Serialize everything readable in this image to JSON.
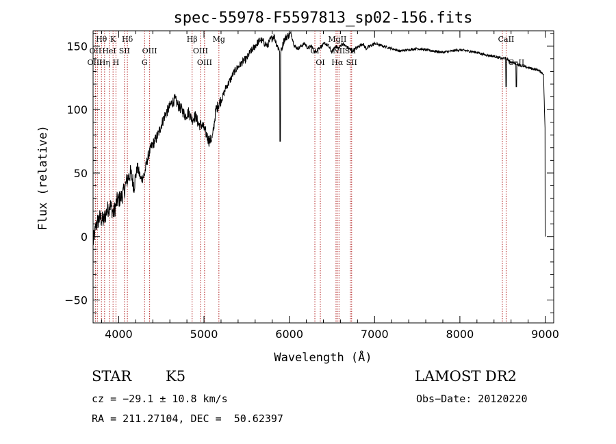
{
  "chart_data": {
    "type": "line",
    "title": "spec-55978-F5597813_sp02-156.fits",
    "xlabel": "Wavelength (Å)",
    "ylabel": "Flux (relative)",
    "xlim": [
      3700,
      9100
    ],
    "ylim": [
      -68,
      162
    ],
    "x_ticks": [
      4000,
      5000,
      6000,
      7000,
      8000,
      9000
    ],
    "y_ticks": [
      -50,
      0,
      50,
      100,
      150
    ],
    "grid": false,
    "series": [
      {
        "color": "#000000",
        "x": [
          3700,
          3740,
          3780,
          3820,
          3860,
          3900,
          3940,
          3980,
          4020,
          4060,
          4100,
          4140,
          4180,
          4220,
          4260,
          4300,
          4340,
          4380,
          4420,
          4460,
          4500,
          4540,
          4580,
          4620,
          4660,
          4700,
          4740,
          4780,
          4820,
          4860,
          4900,
          4940,
          4980,
          5020,
          5060,
          5100,
          5140,
          5180,
          5220,
          5260,
          5300,
          5340,
          5380,
          5420,
          5460,
          5500,
          5540,
          5580,
          5620,
          5660,
          5700,
          5740,
          5780,
          5820,
          5860,
          5900,
          5940,
          5980,
          6020,
          6060,
          6100,
          6140,
          6180,
          6220,
          6260,
          6300,
          6340,
          6380,
          6420,
          6460,
          6500,
          6540,
          6580,
          6620,
          6660,
          6700,
          6740,
          6780,
          6820,
          6860,
          6900,
          6950,
          7000,
          7100,
          7200,
          7300,
          7400,
          7500,
          7600,
          7700,
          7800,
          7900,
          8000,
          8100,
          8200,
          8300,
          8400,
          8500,
          8540,
          8580,
          8620,
          8660,
          8700,
          8740,
          8800,
          8860,
          8920,
          8980,
          9000
        ],
        "y": [
          -5,
          10,
          15,
          12,
          20,
          25,
          18,
          28,
          30,
          35,
          45,
          50,
          40,
          55,
          45,
          48,
          62,
          70,
          75,
          80,
          88,
          95,
          100,
          105,
          108,
          103,
          100,
          95,
          98,
          92,
          95,
          88,
          88,
          82,
          75,
          78,
          100,
          105,
          110,
          118,
          122,
          128,
          132,
          135,
          138,
          140,
          145,
          148,
          152,
          155,
          153,
          150,
          155,
          158,
          150,
          145,
          155,
          158,
          160,
          150,
          148,
          150,
          152,
          148,
          150,
          145,
          148,
          150,
          152,
          150,
          145,
          150,
          148,
          152,
          150,
          148,
          146,
          148,
          150,
          152,
          148,
          150,
          152,
          150,
          148,
          146,
          147,
          148,
          147,
          146,
          145,
          146,
          147,
          146,
          145,
          143,
          142,
          140,
          141,
          138,
          137,
          136,
          135,
          134,
          133,
          132,
          131,
          128,
          80
        ]
      }
    ],
    "spectral_lines": [
      {
        "label": "Hθ",
        "x": 3798,
        "row": 0
      },
      {
        "label": "K",
        "x": 3934,
        "row": 0
      },
      {
        "label": "Hδ",
        "x": 4102,
        "row": 0
      },
      {
        "label": "Hβ",
        "x": 4861,
        "row": 0
      },
      {
        "label": "Mg",
        "x": 5175,
        "row": 0
      },
      {
        "label": "MgII",
        "x": 6563,
        "row": 0
      },
      {
        "label": "CaII",
        "x": 8542,
        "row": 0
      },
      {
        "label": "OII",
        "x": 3727,
        "row": 1
      },
      {
        "label": "HeI",
        "x": 3889,
        "row": 1
      },
      {
        "label": "SII",
        "x": 4068,
        "row": 1
      },
      {
        "label": "OIII",
        "x": 4363,
        "row": 1
      },
      {
        "label": "OIII",
        "x": 4959,
        "row": 1
      },
      {
        "label": "OI",
        "x": 6300,
        "row": 1
      },
      {
        "label": "NII",
        "x": 6583,
        "row": 1
      },
      {
        "label": "SII",
        "x": 6716,
        "row": 1
      },
      {
        "label": "OIII",
        "x": 3720,
        "row": 2
      },
      {
        "label": "Hη",
        "x": 3835,
        "row": 2
      },
      {
        "label": "H",
        "x": 3968,
        "row": 2
      },
      {
        "label": "G",
        "x": 4304,
        "row": 2
      },
      {
        "label": "OIII",
        "x": 5007,
        "row": 2
      },
      {
        "label": "OI",
        "x": 6364,
        "row": 2
      },
      {
        "label": "Hα",
        "x": 6563,
        "row": 2
      },
      {
        "label": "SII",
        "x": 6731,
        "row": 2
      },
      {
        "label": "CaII",
        "x": 8662,
        "row": 2
      }
    ],
    "line_markers_x": [
      3727,
      3750,
      3798,
      3835,
      3889,
      3934,
      3968,
      4068,
      4102,
      4304,
      4363,
      4861,
      4959,
      5007,
      5175,
      6300,
      6364,
      6548,
      6563,
      6583,
      6716,
      6731,
      8498,
      8542
    ]
  },
  "info": {
    "object_class": "STAR",
    "subclass": "K5",
    "survey": "LAMOST DR2",
    "cz": "cz = −29.1 ± 10.8 km/s",
    "obs_date": "Obs−Date: 20120220",
    "coords": "RA = 211.27104, DEC =  50.62397"
  }
}
